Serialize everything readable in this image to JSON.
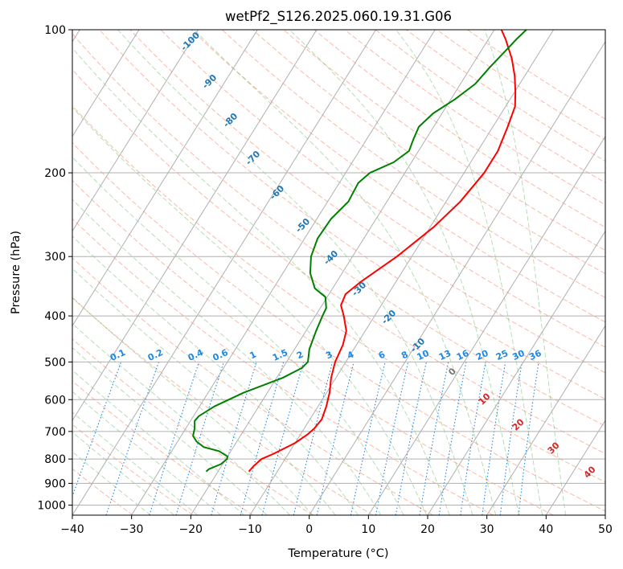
{
  "chart_data": {
    "type": "line",
    "title": "wetPf2_S126.2025.060.19.31.G06",
    "xlabel": "Temperature (°C)",
    "ylabel": "Pressure (hPa)",
    "xlim": [
      -40,
      50
    ],
    "ylim": [
      1050,
      100
    ],
    "y_scale": "log",
    "grid": true,
    "x_ticks": [
      "−40",
      "−30",
      "−20",
      "−10",
      "0",
      "10",
      "20",
      "30",
      "40",
      "50"
    ],
    "y_ticks": [
      1000,
      900,
      800,
      700,
      600,
      500,
      400,
      300,
      200,
      100
    ],
    "isotherm_labels": [
      "-100",
      "-90",
      "-80",
      "-70",
      "-60",
      "-50",
      "-40",
      "-30",
      "-20",
      "-10",
      "0",
      "10",
      "20",
      "30",
      "40"
    ],
    "mixing_ratio_labels": [
      "0.1",
      "0.2",
      "0.4",
      "0.6",
      "1",
      "1.5",
      "2",
      "3",
      "4",
      "6",
      "8",
      "10",
      "13",
      "16",
      "20",
      "25",
      "30",
      "36"
    ],
    "series": [
      {
        "role": "temperature",
        "color": "#ff0000",
        "points": [
          {
            "p": 850,
            "t": -14.8
          },
          {
            "p": 830,
            "t": -14.6
          },
          {
            "p": 800,
            "t": -14.0
          },
          {
            "p": 780,
            "t": -12.5
          },
          {
            "p": 740,
            "t": -10.0
          },
          {
            "p": 710,
            "t": -8.8
          },
          {
            "p": 690,
            "t": -8.3
          },
          {
            "p": 660,
            "t": -8.0
          },
          {
            "p": 620,
            "t": -8.6
          },
          {
            "p": 580,
            "t": -9.5
          },
          {
            "p": 540,
            "t": -10.8
          },
          {
            "p": 500,
            "t": -11.8
          },
          {
            "p": 460,
            "t": -12.3
          },
          {
            "p": 430,
            "t": -13.2
          },
          {
            "p": 400,
            "t": -15.2
          },
          {
            "p": 380,
            "t": -16.8
          },
          {
            "p": 360,
            "t": -17.2
          },
          {
            "p": 340,
            "t": -16.0
          },
          {
            "p": 300,
            "t": -12.5
          },
          {
            "p": 260,
            "t": -9.4
          },
          {
            "p": 230,
            "t": -7.6
          },
          {
            "p": 200,
            "t": -6.6
          },
          {
            "p": 180,
            "t": -6.6
          },
          {
            "p": 160,
            "t": -7.5
          },
          {
            "p": 145,
            "t": -8.4
          },
          {
            "p": 135,
            "t": -9.9
          },
          {
            "p": 125,
            "t": -11.7
          },
          {
            "p": 115,
            "t": -14.0
          },
          {
            "p": 105,
            "t": -17.0
          },
          {
            "p": 100,
            "t": -18.8
          }
        ]
      },
      {
        "role": "dewpoint",
        "color": "#008000",
        "points": [
          {
            "p": 850,
            "t": -22.0
          },
          {
            "p": 840,
            "t": -21.8
          },
          {
            "p": 820,
            "t": -20.3
          },
          {
            "p": 800,
            "t": -19.8
          },
          {
            "p": 790,
            "t": -20.0
          },
          {
            "p": 770,
            "t": -22.0
          },
          {
            "p": 755,
            "t": -25.0
          },
          {
            "p": 735,
            "t": -26.8
          },
          {
            "p": 715,
            "t": -28.0
          },
          {
            "p": 690,
            "t": -28.5
          },
          {
            "p": 665,
            "t": -29.3
          },
          {
            "p": 650,
            "t": -29.1
          },
          {
            "p": 620,
            "t": -27.5
          },
          {
            "p": 580,
            "t": -24.0
          },
          {
            "p": 540,
            "t": -19.0
          },
          {
            "p": 515,
            "t": -16.8
          },
          {
            "p": 500,
            "t": -16.4
          },
          {
            "p": 470,
            "t": -17.5
          },
          {
            "p": 430,
            "t": -18.3
          },
          {
            "p": 400,
            "t": -18.8
          },
          {
            "p": 385,
            "t": -19.0
          },
          {
            "p": 365,
            "t": -20.3
          },
          {
            "p": 350,
            "t": -23.0
          },
          {
            "p": 325,
            "t": -25.4
          },
          {
            "p": 300,
            "t": -27.0
          },
          {
            "p": 275,
            "t": -27.8
          },
          {
            "p": 250,
            "t": -27.6
          },
          {
            "p": 230,
            "t": -26.5
          },
          {
            "p": 210,
            "t": -26.8
          },
          {
            "p": 200,
            "t": -25.9
          },
          {
            "p": 190,
            "t": -23.0
          },
          {
            "p": 180,
            "t": -21.6
          },
          {
            "p": 170,
            "t": -22.1
          },
          {
            "p": 160,
            "t": -22.5
          },
          {
            "p": 150,
            "t": -21.5
          },
          {
            "p": 140,
            "t": -19.3
          },
          {
            "p": 130,
            "t": -17.5
          },
          {
            "p": 120,
            "t": -16.8
          },
          {
            "p": 110,
            "t": -15.8
          },
          {
            "p": 105,
            "t": -15.3
          },
          {
            "p": 100,
            "t": -14.6
          }
        ]
      }
    ]
  },
  "colors": {
    "temperature": "#ff0000",
    "dewpoint": "#008000",
    "isotherm_label": "#1f77b4",
    "isotherm_label_warm": "#d62728",
    "mixing_ratio": "#1e88e5",
    "dry_adiabat": "#fa8060",
    "moist_adiabat": "#2ca02c",
    "grid": "#b0b0b0"
  }
}
